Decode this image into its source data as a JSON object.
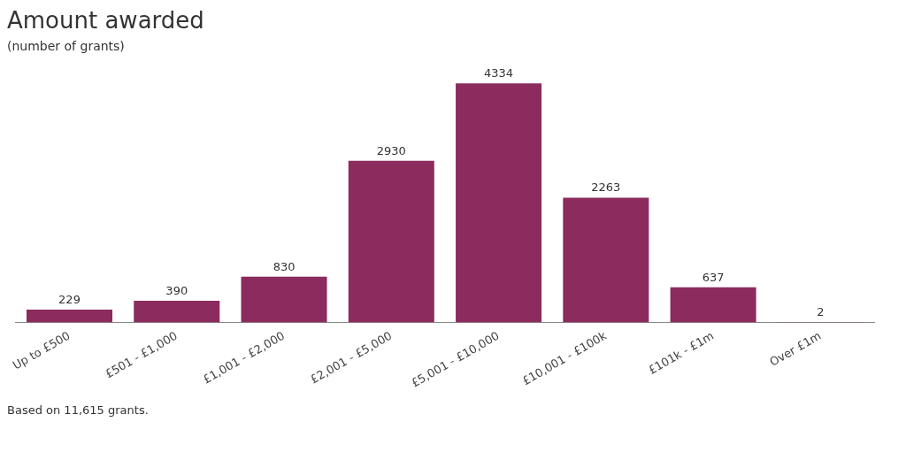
{
  "chart_data": {
    "type": "bar",
    "title": "Amount awarded",
    "subtitle": "(number of grants)",
    "categories": [
      "Up to £500",
      "£501 - £1,000",
      "£1,001 - £2,000",
      "£2,001 - £5,000",
      "£5,001 - £10,000",
      "£10,001 - £100k",
      "£101k - £1m",
      "Over £1m"
    ],
    "values": [
      229,
      390,
      830,
      2930,
      4334,
      2263,
      637,
      2
    ],
    "color": "#8b2b5e",
    "data_labels": true,
    "grid": false,
    "legend": false,
    "annotations": [
      "Based on 11,615 grants."
    ]
  }
}
